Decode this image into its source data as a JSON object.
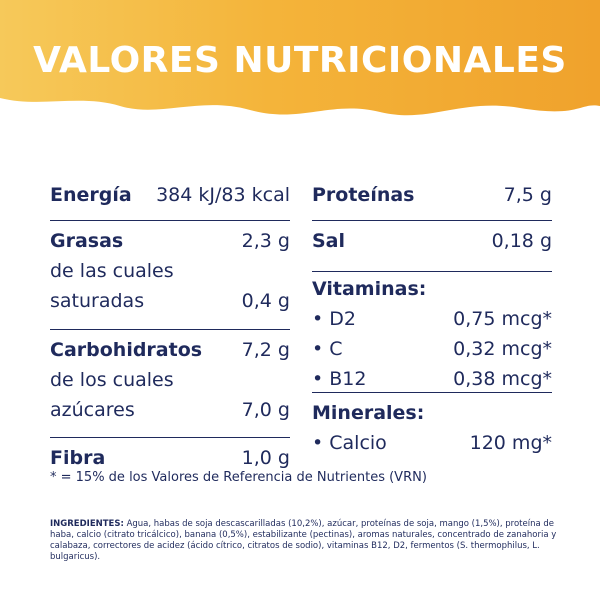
{
  "header": {
    "title": "VALORES NUTRICIONALES",
    "colors": {
      "banner_start": "#f6c95a",
      "banner_end": "#f0a22c",
      "text": "#1f2a5c"
    }
  },
  "left": {
    "energia": {
      "label": "Energía",
      "value": "384 kJ/83 kcal"
    },
    "grasas": {
      "label": "Grasas",
      "value": "2,3 g",
      "sub_label_1": "de las cuales",
      "sub_label_2": "saturadas",
      "sub_value": "0,4 g"
    },
    "carbohidratos": {
      "label": "Carbohidratos",
      "value": "7,2 g",
      "sub_label_1": "de los cuales",
      "sub_label_2": "azúcares",
      "sub_value": "7,0 g"
    },
    "fibra": {
      "label": "Fibra",
      "value": "1,0 g"
    }
  },
  "right": {
    "proteinas": {
      "label": "Proteínas",
      "value": "7,5 g"
    },
    "sal": {
      "label": "Sal",
      "value": "0,18 g"
    },
    "vitaminas": {
      "label": "Vitaminas:",
      "items": [
        {
          "name": "D2",
          "value": "0,75 mcg*"
        },
        {
          "name": "C",
          "value": "0,32 mcg*"
        },
        {
          "name": "B12",
          "value": "0,38 mcg*"
        }
      ]
    },
    "minerales": {
      "label": "Minerales:",
      "items": [
        {
          "name": "Calcio",
          "value": "120 mg*"
        }
      ]
    }
  },
  "footnote": "* = 15% de los Valores de Referencia de Nutrientes (VRN)",
  "ingredients": {
    "label": "INGREDIENTES:",
    "text": " Agua, habas de soja descascarilladas (10,2%), azúcar, proteínas de soja, mango (1,5%), proteína de haba, calcio (citrato tricálcico), banana (0,5%), estabilizante (pectinas), aromas naturales, concentrado de zanahoria y calabaza, correctores de acidez (ácido cítrico, citratos de sodio), vitaminas B12, D2, fermentos (S. thermophilus, L. bulgaricus)."
  }
}
